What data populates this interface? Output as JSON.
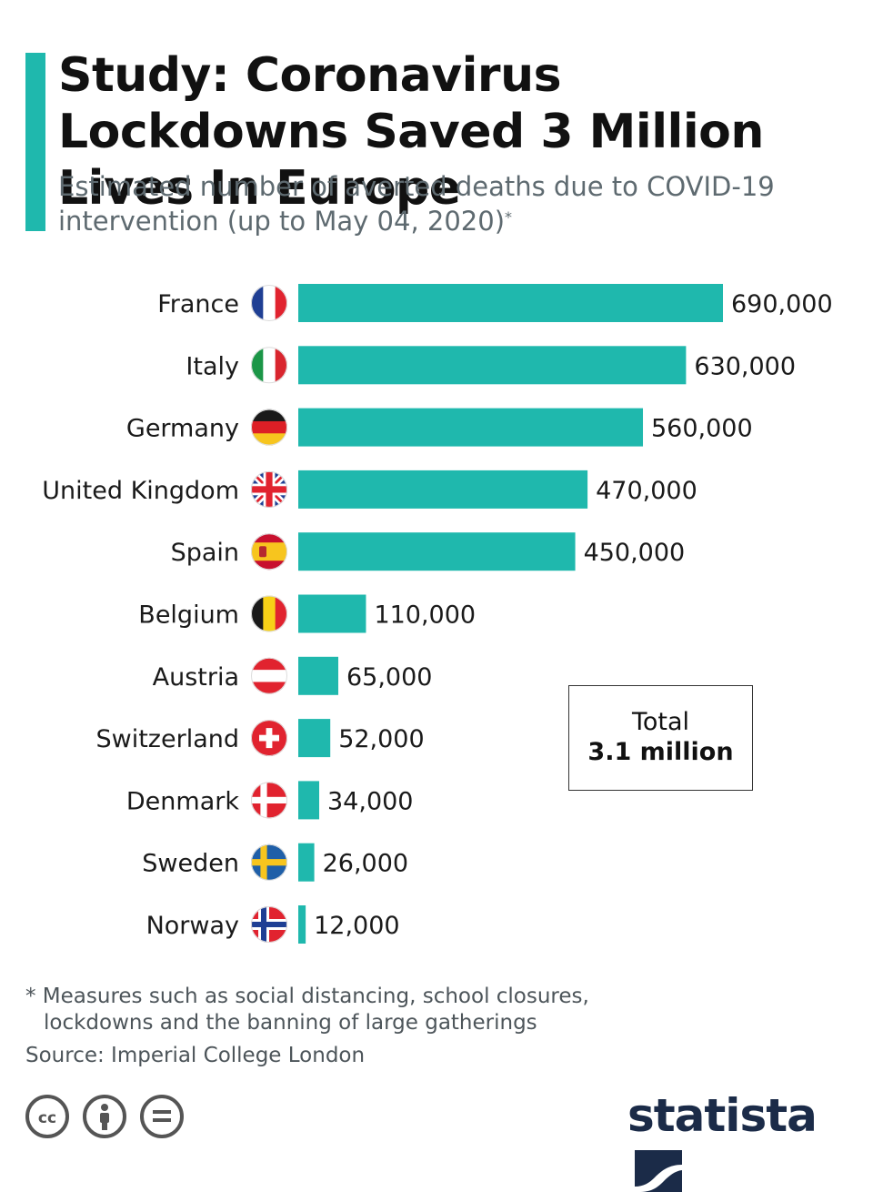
{
  "header": {
    "title": "Study: Coronavirus Lockdowns Saved 3 Million Lives In Europe",
    "subtitle": "Estimated number of averted deaths due to COVID-19 intervention (up to May 04, 2020)",
    "subtitle_mark": "*"
  },
  "chart_data": {
    "type": "bar",
    "orientation": "horizontal",
    "title": "Study: Coronavirus Lockdowns Saved 3 Million Lives In Europe",
    "subtitle": "Estimated number of averted deaths due to COVID-19 intervention (up to May 04, 2020)*",
    "categories": [
      "France",
      "Italy",
      "Germany",
      "United Kingdom",
      "Spain",
      "Belgium",
      "Austria",
      "Switzerland",
      "Denmark",
      "Sweden",
      "Norway"
    ],
    "values": [
      690000,
      630000,
      560000,
      470000,
      450000,
      110000,
      65000,
      52000,
      34000,
      26000,
      12000
    ],
    "value_labels": [
      "690,000",
      "630,000",
      "560,000",
      "470,000",
      "450,000",
      "110,000",
      "65,000",
      "52,000",
      "34,000",
      "26,000",
      "12,000"
    ],
    "flags": [
      "france-flag",
      "italy-flag",
      "germany-flag",
      "uk-flag",
      "spain-flag",
      "belgium-flag",
      "austria-flag",
      "switzerland-flag",
      "denmark-flag",
      "sweden-flag",
      "norway-flag"
    ],
    "bar_color": "#1fb8ad",
    "grid": false,
    "xlim": [
      0,
      690000
    ]
  },
  "total": {
    "label": "Total",
    "value": "3.1 million"
  },
  "footnote": {
    "line1": "* Measures such as social distancing, school closures,",
    "line2": "lockdowns and the banning of large gatherings"
  },
  "source": "Source: Imperial College London",
  "license_icons": [
    "cc-icon",
    "attribution-icon",
    "no-derivatives-icon"
  ],
  "brand": {
    "name": "statista",
    "color": "#1b2b48",
    "accent": "#1fb8ad"
  }
}
